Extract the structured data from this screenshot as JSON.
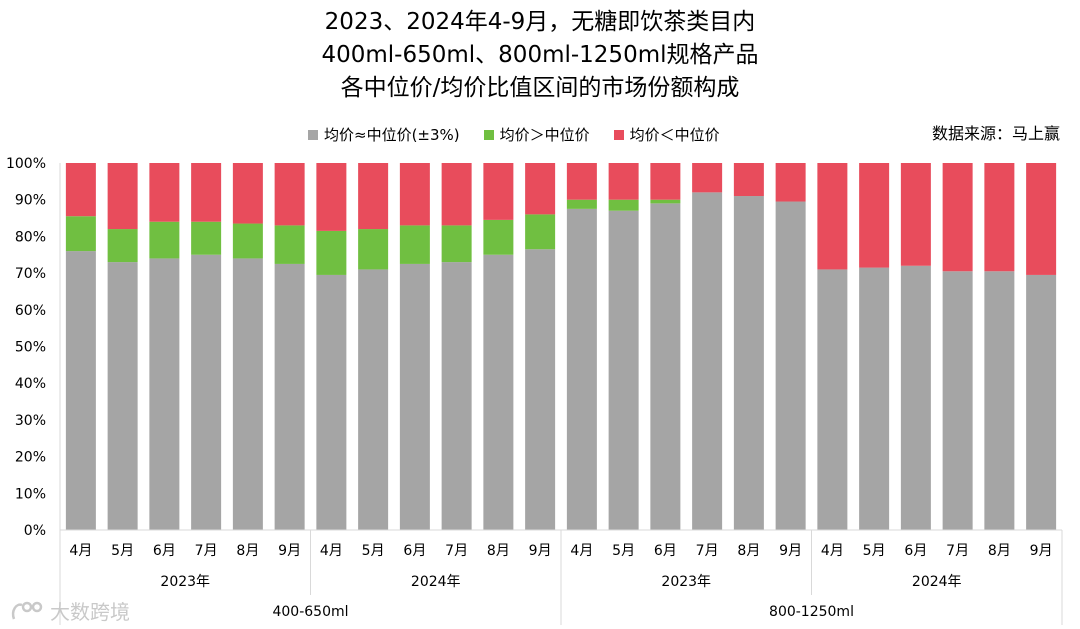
{
  "title_lines": [
    "2023、2024年4-9月，无糖即饮茶类目内",
    "400ml-650ml、800ml-1250ml规格产品",
    "各中位价/均价比值区间的市场份额构成"
  ],
  "source": "数据来源：马上赢",
  "watermark": "大数跨境",
  "colors": {
    "gray": "#a5a5a5",
    "green": "#70bf41",
    "red": "#e84c5c"
  },
  "chart_data": {
    "type": "bar",
    "stacked": true,
    "ylim": [
      0,
      100
    ],
    "yticks": [
      "0%",
      "10%",
      "20%",
      "30%",
      "40%",
      "50%",
      "60%",
      "70%",
      "80%",
      "90%",
      "100%"
    ],
    "categories": [
      "4月",
      "5月",
      "6月",
      "7月",
      "8月",
      "9月",
      "4月",
      "5月",
      "6月",
      "7月",
      "8月",
      "9月",
      "4月",
      "5月",
      "6月",
      "7月",
      "8月",
      "9月",
      "4月",
      "5月",
      "6月",
      "7月",
      "8月",
      "9月"
    ],
    "year_groups": [
      {
        "label": "2023年",
        "count": 6
      },
      {
        "label": "2024年",
        "count": 6
      },
      {
        "label": "2023年",
        "count": 6
      },
      {
        "label": "2024年",
        "count": 6
      }
    ],
    "size_groups": [
      {
        "label": "400-650ml",
        "count": 12
      },
      {
        "label": "800-1250ml",
        "count": 12
      }
    ],
    "series": [
      {
        "name": "均价≈中位价(±3%)",
        "color_key": "gray",
        "values": [
          76,
          73,
          74,
          75,
          74,
          72.5,
          69.5,
          71,
          72.5,
          73,
          75,
          76.5,
          87.5,
          87,
          89,
          92,
          91,
          89.5,
          71,
          71.5,
          72,
          70.5,
          70.5,
          69.5
        ]
      },
      {
        "name": "均价＞中位价",
        "color_key": "green",
        "values": [
          9.5,
          9,
          10,
          9,
          9.5,
          10.5,
          12,
          11,
          10.5,
          10,
          9.5,
          9.5,
          2.5,
          3,
          1,
          0,
          0,
          0,
          0,
          0,
          0,
          0,
          0,
          0
        ]
      },
      {
        "name": "均价＜中位价",
        "color_key": "red",
        "values": [
          14.5,
          18,
          16,
          16,
          16.5,
          17,
          18.5,
          18,
          17,
          17,
          15.5,
          14,
          10,
          10,
          10,
          8,
          9,
          10.5,
          29,
          28.5,
          28,
          29.5,
          29.5,
          30.5
        ]
      }
    ]
  }
}
